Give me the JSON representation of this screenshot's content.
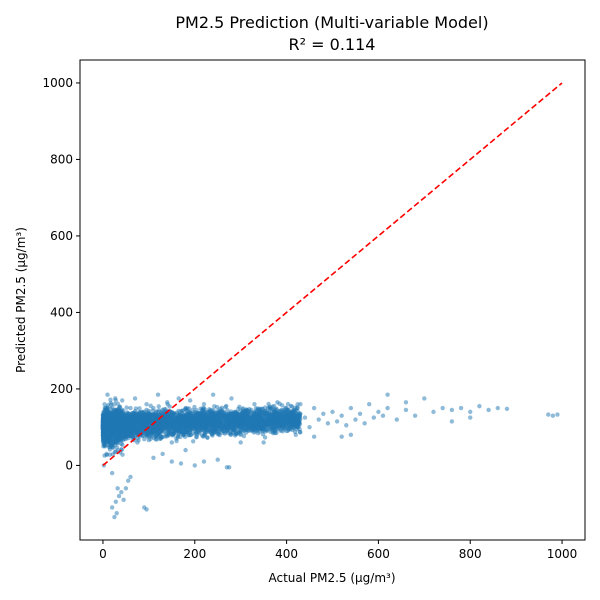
{
  "chart_data": {
    "type": "scatter",
    "title": "PM2.5 Prediction (Multi-variable Model)",
    "subtitle": "R² = 0.114",
    "xlabel": "Actual PM2.5 (μg/m³)",
    "ylabel": "Predicted PM2.5 (μg/m³)",
    "xlim": [
      -50,
      1050
    ],
    "ylim": [
      -195,
      1060
    ],
    "xticks": [
      0,
      200,
      400,
      600,
      800,
      1000
    ],
    "yticks": [
      0,
      200,
      400,
      600,
      800,
      1000
    ],
    "grid": false,
    "series": [
      {
        "role": "scatter",
        "color": "#1f77b4",
        "alpha": 0.5,
        "points": [
          [
            2,
            0
          ],
          [
            3,
            60
          ],
          [
            5,
            120
          ],
          [
            4,
            150
          ],
          [
            6,
            90
          ],
          [
            8,
            30
          ],
          [
            10,
            110
          ],
          [
            12,
            140
          ],
          [
            15,
            80
          ],
          [
            18,
            130
          ],
          [
            20,
            -20
          ],
          [
            22,
            100
          ],
          [
            25,
            160
          ],
          [
            28,
            60
          ],
          [
            30,
            120
          ],
          [
            32,
            -60
          ],
          [
            35,
            150
          ],
          [
            38,
            90
          ],
          [
            40,
            110
          ],
          [
            42,
            170
          ],
          [
            20,
            -110
          ],
          [
            25,
            -135
          ],
          [
            28,
            -95
          ],
          [
            35,
            -80
          ],
          [
            40,
            -70
          ],
          [
            45,
            -90
          ],
          [
            30,
            -125
          ],
          [
            50,
            -60
          ],
          [
            55,
            -40
          ],
          [
            60,
            -30
          ],
          [
            90,
            -110
          ],
          [
            95,
            -115
          ],
          [
            50,
            130
          ],
          [
            55,
            90
          ],
          [
            60,
            150
          ],
          [
            65,
            110
          ],
          [
            70,
            175
          ],
          [
            75,
            60
          ],
          [
            80,
            120
          ],
          [
            85,
            140
          ],
          [
            90,
            95
          ],
          [
            95,
            160
          ],
          [
            100,
            130
          ],
          [
            105,
            80
          ],
          [
            110,
            150
          ],
          [
            115,
            110
          ],
          [
            120,
            185
          ],
          [
            125,
            70
          ],
          [
            130,
            140
          ],
          [
            135,
            100
          ],
          [
            140,
            165
          ],
          [
            145,
            120
          ],
          [
            150,
            60
          ],
          [
            155,
            135
          ],
          [
            160,
            95
          ],
          [
            165,
            175
          ],
          [
            170,
            125
          ],
          [
            175,
            80
          ],
          [
            180,
            150
          ],
          [
            185,
            110
          ],
          [
            190,
            170
          ],
          [
            195,
            130
          ],
          [
            150,
            10
          ],
          [
            170,
            5
          ],
          [
            200,
            0
          ],
          [
            220,
            10
          ],
          [
            250,
            15
          ],
          [
            270,
            -5
          ],
          [
            275,
            -5
          ],
          [
            110,
            20
          ],
          [
            130,
            30
          ],
          [
            180,
            40
          ],
          [
            200,
            140
          ],
          [
            210,
            100
          ],
          [
            220,
            160
          ],
          [
            230,
            120
          ],
          [
            240,
            185
          ],
          [
            250,
            90
          ],
          [
            260,
            140
          ],
          [
            270,
            110
          ],
          [
            280,
            175
          ],
          [
            290,
            125
          ],
          [
            300,
            80
          ],
          [
            310,
            140
          ],
          [
            320,
            100
          ],
          [
            330,
            160
          ],
          [
            340,
            120
          ],
          [
            350,
            95
          ],
          [
            360,
            150
          ],
          [
            370,
            115
          ],
          [
            380,
            165
          ],
          [
            390,
            130
          ],
          [
            400,
            90
          ],
          [
            410,
            140
          ],
          [
            420,
            110
          ],
          [
            430,
            160
          ],
          [
            440,
            125
          ],
          [
            450,
            100
          ],
          [
            460,
            150
          ],
          [
            470,
            120
          ],
          [
            480,
            135
          ],
          [
            490,
            110
          ],
          [
            500,
            140
          ],
          [
            510,
            115
          ],
          [
            520,
            130
          ],
          [
            530,
            105
          ],
          [
            540,
            150
          ],
          [
            550,
            120
          ],
          [
            560,
            135
          ],
          [
            570,
            110
          ],
          [
            580,
            160
          ],
          [
            590,
            125
          ],
          [
            600,
            140
          ],
          [
            610,
            130
          ],
          [
            620,
            150
          ],
          [
            640,
            120
          ],
          [
            660,
            145
          ],
          [
            680,
            130
          ],
          [
            700,
            175
          ],
          [
            720,
            140
          ],
          [
            740,
            150
          ],
          [
            760,
            145
          ],
          [
            780,
            150
          ],
          [
            800,
            140
          ],
          [
            820,
            155
          ],
          [
            840,
            145
          ],
          [
            860,
            150
          ],
          [
            880,
            148
          ],
          [
            970,
            133
          ],
          [
            980,
            130
          ],
          [
            990,
            133
          ],
          [
            300,
            60
          ],
          [
            350,
            60
          ],
          [
            420,
            80
          ],
          [
            460,
            75
          ],
          [
            520,
            75
          ],
          [
            540,
            80
          ],
          [
            620,
            185
          ],
          [
            660,
            165
          ],
          [
            760,
            115
          ],
          [
            800,
            125
          ]
        ]
      },
      {
        "role": "reference-line",
        "color": "#ff0000",
        "dash": "dashed",
        "points": [
          [
            0,
            0
          ],
          [
            1000,
            1000
          ]
        ]
      }
    ]
  }
}
